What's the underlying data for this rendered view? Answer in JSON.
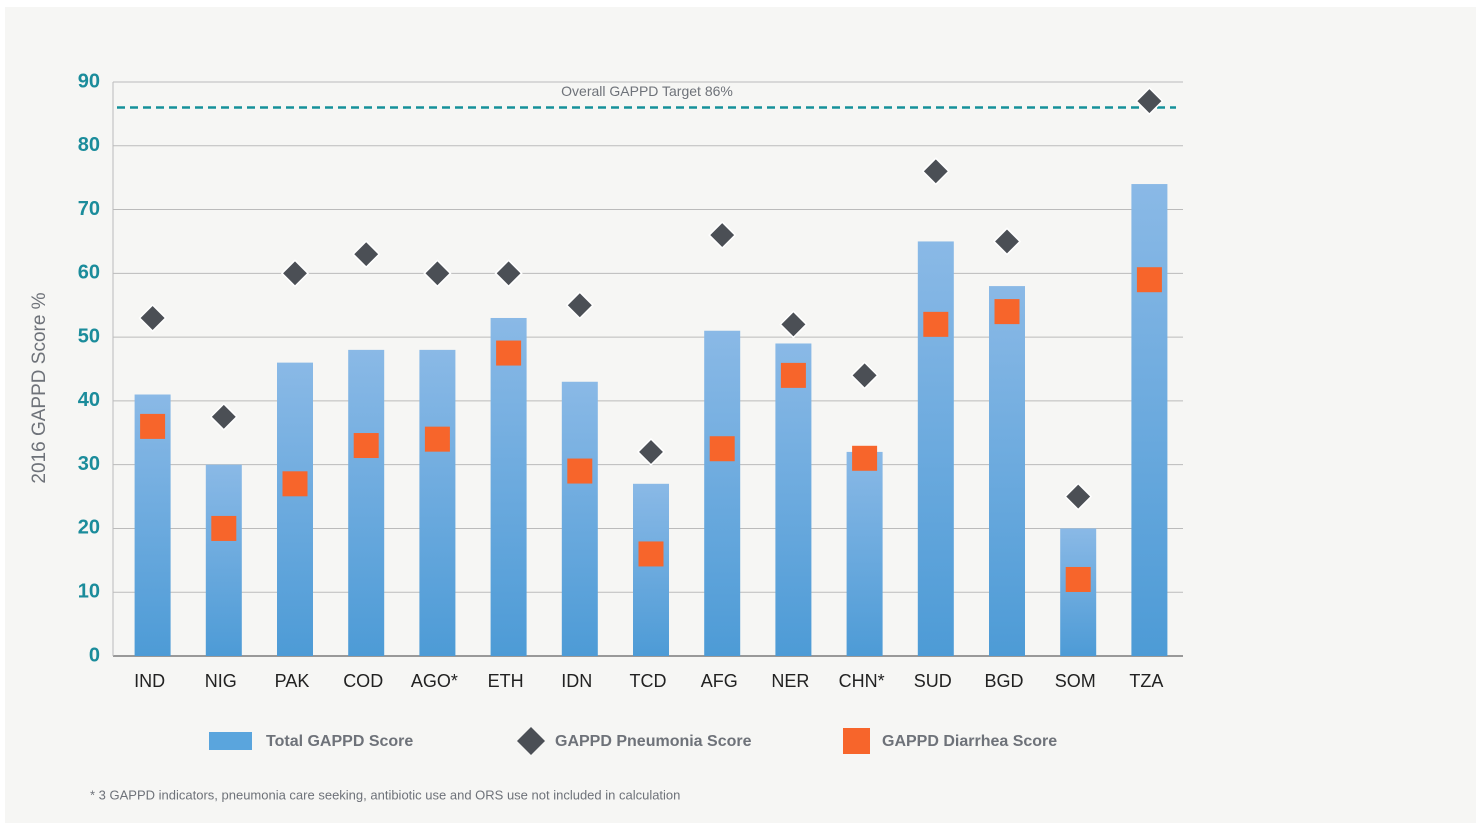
{
  "chart_data": {
    "type": "bar",
    "y_label": "2016 GAPPD Score %",
    "categories": [
      "IND",
      "NIG",
      "PAK",
      "COD",
      "AGO*",
      "ETH",
      "IDN",
      "TCD",
      "AFG",
      "NER",
      "CHN*",
      "SUD",
      "BGD",
      "SOM",
      "TZA"
    ],
    "series": [
      {
        "name": "Total GAPPD Score",
        "color": "#5aa5dd",
        "marker": "bar",
        "values": [
          41,
          30,
          46,
          48,
          48,
          53,
          43,
          27,
          51,
          49,
          32,
          65,
          58,
          20,
          74
        ]
      },
      {
        "name": "GAPPD Pneumonia Score",
        "color": "#4b4f55",
        "marker": "diamond",
        "values": [
          53,
          37.5,
          60,
          63,
          60,
          60,
          55,
          32,
          66,
          52,
          44,
          76,
          65,
          25,
          87
        ]
      },
      {
        "name": "GAPPD Diarrhea Score",
        "color": "#f7652b",
        "marker": "square",
        "values": [
          36,
          20,
          27,
          33,
          34,
          47.5,
          29,
          16,
          32.5,
          44,
          31,
          52,
          54,
          12,
          59
        ]
      }
    ],
    "target": {
      "label": "Overall GAPPD Target 86%",
      "value": 86
    },
    "ylim": [
      0,
      90
    ],
    "yticks": [
      0,
      10,
      20,
      30,
      40,
      50,
      60,
      70,
      80,
      90
    ],
    "grid": true,
    "footnote": "* 3 GAPPD indicators, pneumonia care seeking, antibiotic use and ORS use not included in calculation"
  }
}
